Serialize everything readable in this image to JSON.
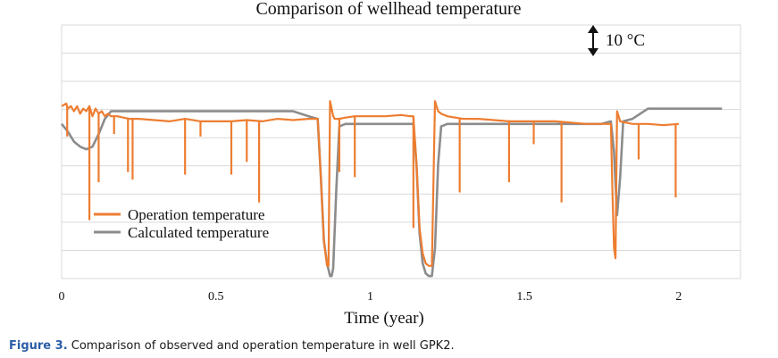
{
  "caption": {
    "label": "Figure 3.",
    "text": " Comparison of observed and operation temperature in well GPK2."
  },
  "colors": {
    "operation": "#ed7d31",
    "calculated": "#8c8c8c",
    "grid": "#d9d9d9",
    "caption_label": "#2a5ea8"
  },
  "chart_data": {
    "type": "line",
    "title": "Comparison of wellhead temperature",
    "xlabel": "Time (year)",
    "ylabel": "",
    "xlim": [
      0,
      2.2
    ],
    "ylim": [
      0,
      10
    ],
    "x_ticks": [
      0,
      0.5,
      1,
      1.5,
      2
    ],
    "x_tick_labels": [
      "0",
      "0.5",
      "1",
      "1.5",
      "2"
    ],
    "y_tick_labels": [],
    "grid": "horizontal",
    "legend": "bottom-left",
    "scale_annotation": "10 °C",
    "series": [
      {
        "name": "Operation temperature",
        "color": "#ed7d31",
        "x": [
          0,
          0.015,
          0.02,
          0.03,
          0.04,
          0.05,
          0.06,
          0.07,
          0.08,
          0.09,
          0.1,
          0.11,
          0.12,
          0.13,
          0.14,
          0.15,
          0.16,
          0.18,
          0.2,
          0.22,
          0.25,
          0.3,
          0.35,
          0.4,
          0.45,
          0.5,
          0.55,
          0.6,
          0.65,
          0.7,
          0.75,
          0.8,
          0.82,
          0.83,
          0.84,
          0.85,
          0.86,
          0.865,
          0.87,
          0.875,
          0.88,
          0.885,
          0.89,
          0.9,
          0.92,
          0.95,
          1.0,
          1.05,
          1.1,
          1.13,
          1.14,
          1.15,
          1.16,
          1.17,
          1.18,
          1.19,
          1.2,
          1.21,
          1.215,
          1.22,
          1.23,
          1.25,
          1.3,
          1.35,
          1.4,
          1.45,
          1.5,
          1.55,
          1.6,
          1.65,
          1.7,
          1.75,
          1.78,
          1.785,
          1.79,
          1.795,
          1.8,
          1.81,
          1.85,
          1.9,
          1.95,
          2.0
        ],
        "y": [
          6.8,
          6.9,
          6.7,
          6.8,
          6.6,
          6.8,
          6.5,
          6.7,
          6.6,
          6.8,
          6.4,
          6.7,
          6.5,
          6.6,
          6.4,
          6.5,
          6.4,
          6.4,
          6.35,
          6.3,
          6.3,
          6.25,
          6.2,
          6.3,
          6.2,
          6.2,
          6.2,
          6.25,
          6.2,
          6.3,
          6.25,
          6.3,
          6.3,
          6.3,
          4.0,
          1.5,
          0.5,
          0.5,
          7.0,
          6.7,
          6.4,
          6.3,
          6.3,
          6.3,
          6.35,
          6.4,
          6.4,
          6.4,
          6.45,
          6.4,
          6.4,
          4.5,
          2.0,
          1.0,
          0.6,
          0.5,
          0.5,
          7.0,
          6.8,
          6.6,
          6.5,
          6.4,
          6.3,
          6.3,
          6.25,
          6.2,
          6.2,
          6.2,
          6.2,
          6.15,
          6.1,
          6.1,
          6.1,
          3.5,
          1.2,
          0.8,
          6.6,
          6.2,
          6.1,
          6.1,
          6.05,
          6.1
        ]
      },
      {
        "name": "Calculated temperature",
        "color": "#8c8c8c",
        "x": [
          0,
          0.02,
          0.04,
          0.06,
          0.08,
          0.1,
          0.12,
          0.14,
          0.16,
          0.2,
          0.3,
          0.4,
          0.5,
          0.6,
          0.7,
          0.75,
          0.8,
          0.83,
          0.84,
          0.85,
          0.86,
          0.87,
          0.875,
          0.88,
          0.89,
          0.9,
          0.92,
          0.95,
          1.0,
          1.05,
          1.1,
          1.14,
          1.15,
          1.16,
          1.17,
          1.18,
          1.19,
          1.2,
          1.21,
          1.22,
          1.23,
          1.25,
          1.3,
          1.4,
          1.5,
          1.6,
          1.7,
          1.75,
          1.78,
          1.79,
          1.8,
          1.81,
          1.82,
          1.85,
          1.9,
          2.0,
          2.1,
          2.14
        ],
        "y": [
          6.1,
          5.8,
          5.4,
          5.2,
          5.1,
          5.2,
          5.7,
          6.3,
          6.6,
          6.6,
          6.6,
          6.6,
          6.6,
          6.6,
          6.6,
          6.6,
          6.4,
          6.3,
          4.0,
          1.5,
          0.6,
          0.1,
          0.1,
          0.4,
          3.5,
          6.0,
          6.1,
          6.1,
          6.1,
          6.1,
          6.1,
          6.1,
          4.5,
          1.8,
          0.6,
          0.2,
          0.1,
          0.1,
          1.2,
          4.5,
          6.0,
          6.1,
          6.1,
          6.1,
          6.1,
          6.1,
          6.1,
          6.1,
          6.2,
          5.0,
          2.5,
          4.0,
          6.2,
          6.3,
          6.7,
          6.7,
          6.7,
          6.7
        ]
      }
    ],
    "spikes": {
      "series": "Operation temperature",
      "x": [
        0.018,
        0.09,
        0.12,
        0.17,
        0.215,
        0.23,
        0.4,
        0.45,
        0.55,
        0.6,
        0.64,
        0.9,
        0.95,
        1.14,
        1.29,
        1.45,
        1.53,
        1.62,
        1.87,
        1.99
      ],
      "y": [
        5.6,
        2.3,
        3.8,
        5.7,
        4.2,
        3.9,
        4.1,
        5.6,
        4.1,
        4.6,
        3.0,
        4.2,
        4.0,
        2.0,
        3.4,
        3.8,
        5.3,
        3.0,
        4.7,
        3.2
      ]
    }
  }
}
